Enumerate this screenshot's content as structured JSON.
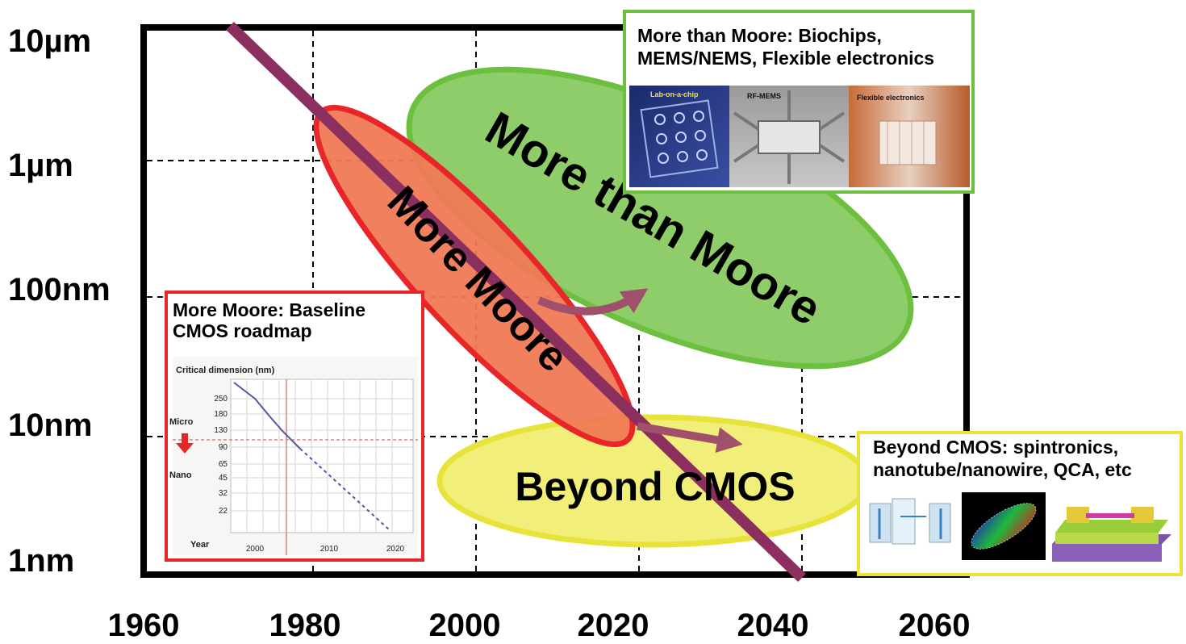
{
  "y_axis_labels": [
    "10µm",
    "1µm",
    "100nm",
    "10nm",
    "1nm"
  ],
  "x_axis_labels": [
    "1960",
    "1980",
    "2000",
    "2020",
    "2040",
    "2060"
  ],
  "regions": {
    "more_moore": "More Moore",
    "more_than_moore": "More than Moore",
    "beyond_cmos": "Beyond CMOS"
  },
  "box_more_than_moore": {
    "title_line1": "More than Moore: Biochips,",
    "title_line2": "MEMS/NEMS, Flexible electronics",
    "images": [
      "Lab-on-a-chip",
      "RF-MEMS",
      "Flexible electronics"
    ]
  },
  "box_beyond_cmos": {
    "title_line1": "Beyond CMOS: spintronics,",
    "title_line2": "nanotube/nanowire, QCA, etc"
  },
  "box_more_moore": {
    "title_line1": "More  Moore: Baseline",
    "title_line2": "CMOS roadmap",
    "inset_title": "Critical dimension (nm)",
    "inset_yticks": [
      "250",
      "180",
      "130",
      "90",
      "65",
      "45",
      "32",
      "22"
    ],
    "inset_xticks": [
      "2000",
      "2010",
      "2020"
    ],
    "inset_xlabel": "Year",
    "micro_label": "Micro",
    "nano_label": "Nano"
  },
  "colors": {
    "main_line": "#8b2f5f",
    "more_moore_fill": "#f07a55",
    "more_moore_stroke": "#e8262a",
    "mtm_fill": "#8fcc6a",
    "mtm_stroke": "#6cbf3f",
    "beyond_fill": "#f2ee7a",
    "beyond_stroke": "#e7e33a",
    "arrow": "#a0506a"
  }
}
